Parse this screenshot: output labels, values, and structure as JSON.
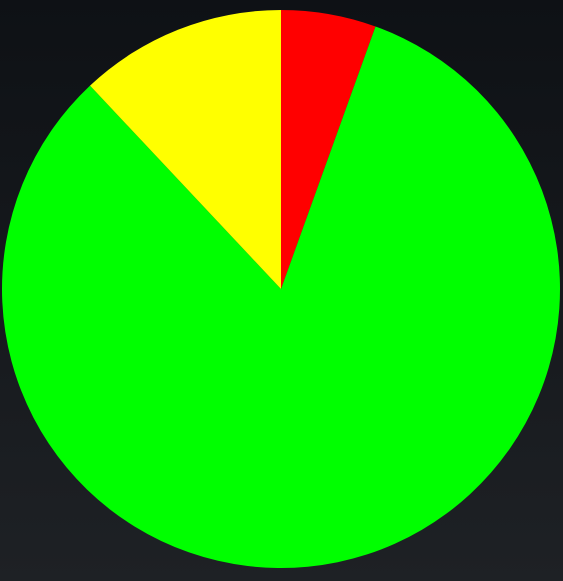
{
  "chart_data": {
    "type": "pie",
    "values": [
      5.5,
      82.5,
      12.0
    ],
    "colors": [
      "#ff0000",
      "#00ff00",
      "#ffff00"
    ],
    "start_angle": "top",
    "direction": "clockwise",
    "legend": "none",
    "labels": "none"
  },
  "background": {
    "top_color": "#0e1115",
    "bottom_color": "#1e2125"
  }
}
